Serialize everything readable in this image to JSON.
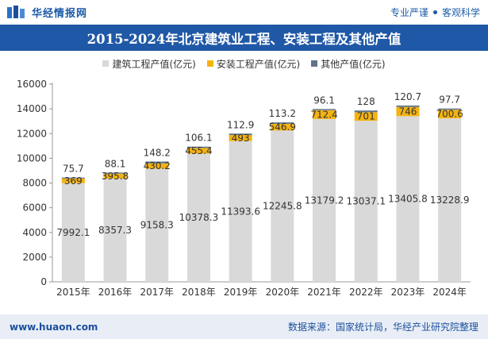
{
  "header": {
    "brand": "华经情报网",
    "slogan_left": "专业严谨",
    "slogan_right": "客观科学"
  },
  "footer": {
    "url": "www.huaon.com",
    "source": "数据来源：国家统计局，华经产业研究院整理"
  },
  "colors": {
    "title_bg": "#1f58a6",
    "building": "#d9d9d9",
    "installation": "#f5b312",
    "other": "#5f7488"
  },
  "chart_data": {
    "type": "bar",
    "stacked": true,
    "title": "2015-2024年北京建筑业工程、安装工程及其他产值",
    "categories": [
      "2015年",
      "2016年",
      "2017年",
      "2018年",
      "2019年",
      "2020年",
      "2021年",
      "2022年",
      "2023年",
      "2024年"
    ],
    "series": [
      {
        "name": "建筑工程产值(亿元)",
        "values": [
          7992.1,
          8357.3,
          9158.3,
          10378.3,
          11393.6,
          12245.8,
          13179.2,
          13037.1,
          13405.8,
          13228.9
        ]
      },
      {
        "name": "安装工程产值(亿元)",
        "values": [
          369,
          395.8,
          430.2,
          455.4,
          493,
          546.9,
          712.4,
          701,
          746,
          700.6
        ]
      },
      {
        "name": "其他产值(亿元)",
        "values": [
          75.7,
          88.1,
          148.2,
          106.1,
          112.9,
          113.2,
          96.1,
          128,
          120.7,
          97.7
        ]
      }
    ],
    "yticks": [
      0,
      2000,
      4000,
      6000,
      8000,
      10000,
      12000,
      14000,
      16000
    ],
    "ylim": [
      0,
      16000
    ],
    "legend": "top-center"
  }
}
